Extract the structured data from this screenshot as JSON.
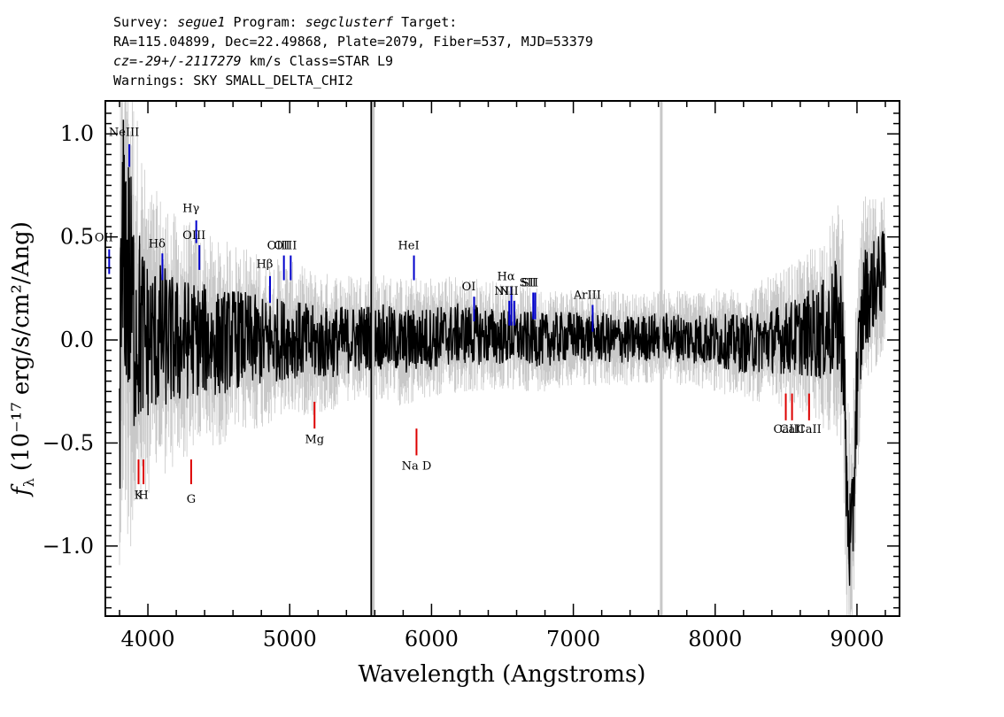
{
  "header": {
    "survey_key": "Survey:",
    "survey": "segue1",
    "program_key": "Program:",
    "program": "segclusterf",
    "target_key": "Target:",
    "line2": "RA=115.04899, Dec=22.49868, Plate=2079, Fiber=537, MJD=53379",
    "cz_key": "cz=",
    "cz_value": "-29+/-2117279",
    "cz_unit": "km/s",
    "class_text": "Class=STAR L9",
    "warnings": "Warnings: SKY SMALL_DELTA_CHI2"
  },
  "chart_data": {
    "type": "line",
    "xlabel": "Wavelength (Angstroms)",
    "ylabel_main": "f",
    "ylabel_sub": "λ",
    "ylabel_rest": "(10⁻¹⁷ erg/s/cm²/Ang)",
    "xlim": [
      3700,
      9300
    ],
    "ylim": [
      -1.34,
      1.16
    ],
    "x_ticks": [
      4000,
      5000,
      6000,
      7000,
      8000,
      9000
    ],
    "x_tick_labels": [
      "4000",
      "5000",
      "6000",
      "7000",
      "8000",
      "9000"
    ],
    "y_ticks": [
      -1.0,
      -0.5,
      0.0,
      0.5,
      1.0
    ],
    "y_tick_labels": [
      "−1.0",
      "−0.5",
      "0.0",
      "0.5",
      "1.0"
    ],
    "colors": {
      "flux": "#000000",
      "error": "#c8c8c8",
      "emission": "#0000cc",
      "absorption": "#dd0000",
      "frame": "#000000"
    },
    "series": [
      {
        "role": "error",
        "x": [
          3800,
          3850,
          3900,
          3950,
          4000,
          4100,
          4200,
          4300,
          4400,
          4500,
          4600,
          4700,
          4800,
          4900,
          5000,
          5200,
          5400,
          5600,
          5800,
          6000,
          6200,
          6400,
          6600,
          6800,
          7000,
          7200,
          7400,
          7600,
          7800,
          8000,
          8200,
          8400,
          8600,
          8800,
          8900,
          9000,
          9100,
          9200
        ],
        "y": [
          0.95,
          1.1,
          0.9,
          0.75,
          0.6,
          0.55,
          0.5,
          0.45,
          0.42,
          0.4,
          0.38,
          0.36,
          0.34,
          0.32,
          0.3,
          0.28,
          0.26,
          0.25,
          0.25,
          0.24,
          0.23,
          0.22,
          0.21,
          0.2,
          0.19,
          0.19,
          0.18,
          0.18,
          0.19,
          0.2,
          0.22,
          0.25,
          0.3,
          0.4,
          0.5,
          0.45,
          0.35,
          0.3
        ]
      },
      {
        "role": "flux",
        "x": [
          3800,
          3830,
          3860,
          3900,
          3950,
          4000,
          4100,
          4200,
          4300,
          4400,
          4500,
          4600,
          4700,
          4800,
          4900,
          5000,
          5200,
          5400,
          5600,
          5800,
          6000,
          6200,
          6400,
          6600,
          6800,
          7000,
          7200,
          7400,
          7600,
          7800,
          8000,
          8200,
          8400,
          8600,
          8800,
          8850,
          8900,
          8930,
          8960,
          9000,
          9050,
          9100,
          9150,
          9200
        ],
        "y": [
          -0.2,
          0.5,
          0.3,
          0.1,
          0.05,
          0.0,
          0.02,
          -0.02,
          0.01,
          0.0,
          -0.02,
          0.01,
          0.0,
          -0.01,
          0.0,
          0.01,
          -0.02,
          0.0,
          0.02,
          -0.01,
          0.01,
          0.03,
          0.02,
          0.01,
          0.0,
          0.02,
          0.01,
          0.0,
          0.02,
          0.01,
          0.0,
          -0.02,
          0.0,
          0.02,
          0.05,
          0.1,
          0.05,
          -0.8,
          -1.07,
          -0.2,
          0.2,
          0.25,
          0.3,
          0.35
        ]
      }
    ],
    "special_lines": [
      {
        "x": 5577,
        "y0": -1.34,
        "y1": 1.16,
        "color": "#000000"
      },
      {
        "x": 5577,
        "y0": -1.34,
        "y1": 1.16,
        "color": "#c8c8c8"
      },
      {
        "x": 7620,
        "y0": -1.34,
        "y1": 1.16,
        "color": "#c8c8c8"
      }
    ],
    "emission_lines": [
      {
        "label": "OII",
        "x": 3727,
        "y_label": 0.48,
        "y0": 0.44,
        "y1": 0.32
      },
      {
        "label": "NeIII",
        "x": 3869,
        "y_label": 0.99,
        "y0": 0.95,
        "y1": 0.84
      },
      {
        "label": "Hδ",
        "x": 4102,
        "y_label": 0.45,
        "y0": 0.42,
        "y1": 0.29
      },
      {
        "label": "Hγ",
        "x": 4341,
        "y_label": 0.62,
        "y0": 0.58,
        "y1": 0.47
      },
      {
        "label": "OIII",
        "x": 4363,
        "y_label": 0.49,
        "y0": 0.46,
        "y1": 0.34
      },
      {
        "label": "Hβ",
        "x": 4861,
        "y_label": 0.35,
        "y0": 0.31,
        "y1": 0.18
      },
      {
        "label": "OIII",
        "x": 4959,
        "y_label": 0.44,
        "y0": 0.41,
        "y1": 0.29
      },
      {
        "label": "OIII",
        "x": 5007,
        "y_label": 0.44,
        "y0": 0.41,
        "y1": 0.29
      },
      {
        "label": "HeI",
        "x": 5876,
        "y_label": 0.44,
        "y0": 0.41,
        "y1": 0.29
      },
      {
        "label": "OI",
        "x": 6300,
        "y_label": 0.24,
        "y0": 0.21,
        "y1": 0.09
      },
      {
        "label": "NII",
        "x": 6548,
        "y_label": 0.22,
        "y0": 0.19,
        "y1": 0.07
      },
      {
        "label": "Hα",
        "x": 6563,
        "y_label": 0.29,
        "y0": 0.26,
        "y1": 0.07
      },
      {
        "label": "NII",
        "x": 6583,
        "y_label": 0.22,
        "y0": 0.19,
        "y1": 0.07
      },
      {
        "label": "SII",
        "x": 6717,
        "y_label": 0.26,
        "y0": 0.23,
        "y1": 0.1
      },
      {
        "label": "SII",
        "x": 6731,
        "y_label": 0.26,
        "y0": 0.23,
        "y1": 0.1
      },
      {
        "label": "ArIII",
        "x": 7136,
        "y_label": 0.2,
        "y0": 0.17,
        "y1": 0.04
      }
    ],
    "absorption_lines": [
      {
        "label": "K",
        "x": 3934,
        "y0": -0.58,
        "y1": -0.7,
        "y_label": -0.77
      },
      {
        "label": "H",
        "x": 3969,
        "y0": -0.58,
        "y1": -0.7,
        "y_label": -0.77
      },
      {
        "label": "G",
        "x": 4305,
        "y0": -0.58,
        "y1": -0.7,
        "y_label": -0.79
      },
      {
        "label": "Mg",
        "x": 5175,
        "y0": -0.3,
        "y1": -0.43,
        "y_label": -0.5
      },
      {
        "label": "Na D",
        "x": 5894,
        "y0": -0.43,
        "y1": -0.56,
        "y_label": -0.63
      },
      {
        "label": "CaII",
        "x": 8498,
        "y0": -0.26,
        "y1": -0.39,
        "y_label": -0.45
      },
      {
        "label": "CaII",
        "x": 8542,
        "y0": -0.26,
        "y1": -0.39,
        "y_label": -0.45
      },
      {
        "label": "CaII",
        "x": 8662,
        "y0": -0.26,
        "y1": -0.39,
        "y_label": -0.45
      }
    ]
  }
}
